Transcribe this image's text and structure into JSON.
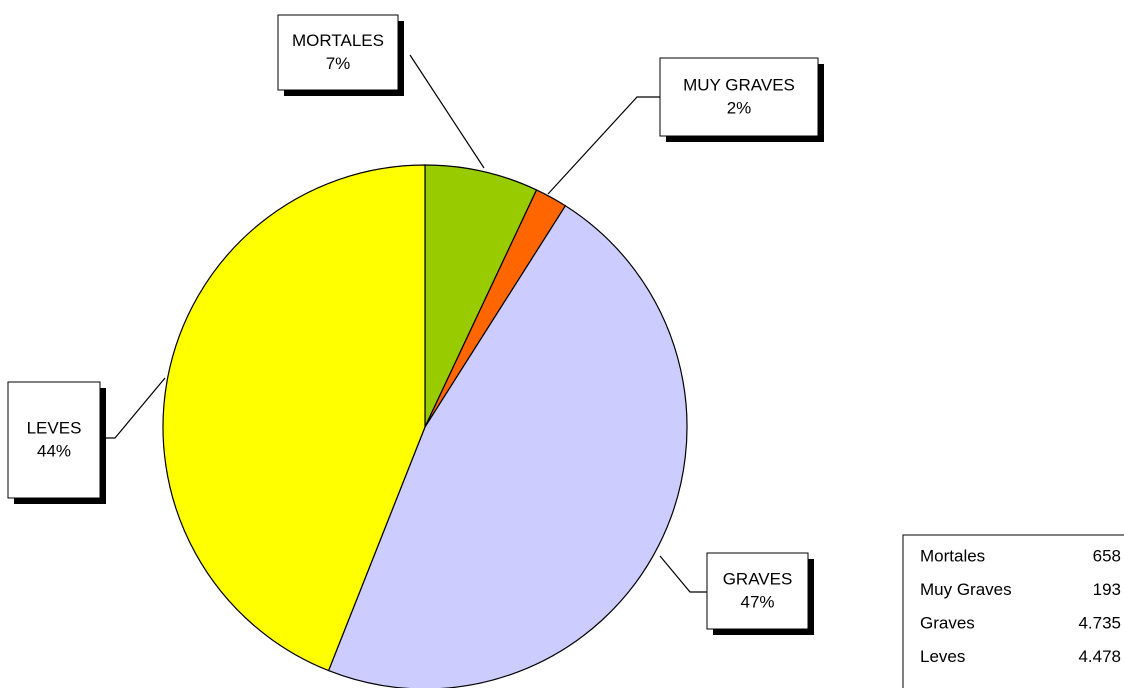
{
  "chart_data": {
    "type": "pie",
    "categories": [
      "MORTALES",
      "MUY GRAVES",
      "GRAVES",
      "LEVES"
    ],
    "values": [
      7,
      2,
      47,
      44
    ],
    "value_labels": [
      "7%",
      "2%",
      "47%",
      "44%"
    ],
    "colors": [
      "#99cc00",
      "#ff6600",
      "#ccccff",
      "#ffff00"
    ]
  },
  "table": {
    "rows": [
      [
        "Mortales",
        "658"
      ],
      [
        "Muy Graves",
        "193"
      ],
      [
        "Graves",
        "4.735"
      ],
      [
        "Leves",
        "4.478"
      ]
    ]
  }
}
